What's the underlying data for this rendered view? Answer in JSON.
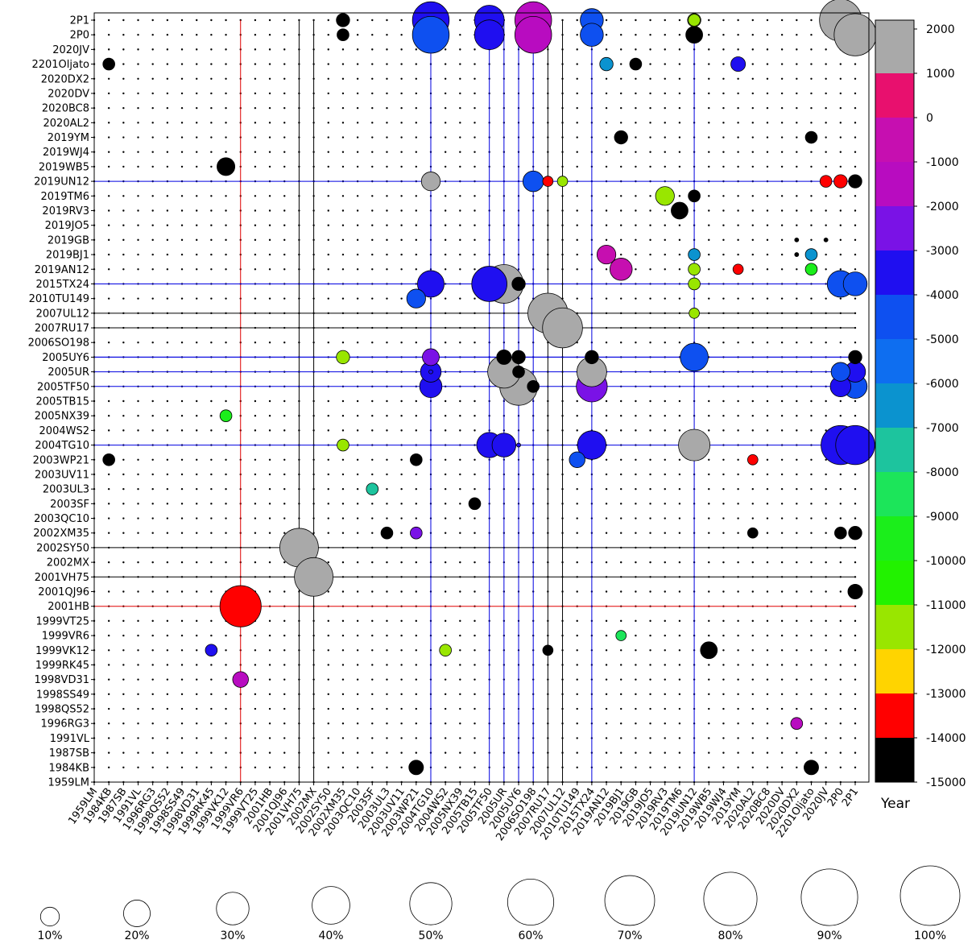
{
  "chart_data": {
    "type": "scatter",
    "description_kind": "bubble-matrix",
    "objects": [
      "1959LM",
      "1984KB",
      "1987SB",
      "1991VL",
      "1996RG3",
      "1998QS52",
      "1998SS49",
      "1998VD31",
      "1999RK45",
      "1999VK12",
      "1999VR6",
      "1999VT25",
      "2001HB",
      "2001QJ96",
      "2001VH75",
      "2002MX",
      "2002SY50",
      "2002XM35",
      "2003QC10",
      "2003SF",
      "2003UL3",
      "2003UV11",
      "2003WP21",
      "2004TG10",
      "2004WS2",
      "2005NX39",
      "2005TB15",
      "2005TF50",
      "2005UR",
      "2005UY6",
      "2006SO198",
      "2007RU17",
      "2007UL12",
      "2010TU149",
      "2015TX24",
      "2019AN12",
      "2019BJ1",
      "2019GB",
      "2019JO5",
      "2019RV3",
      "2019TM6",
      "2019UN12",
      "2019WB5",
      "2019WJ4",
      "2019YM",
      "2020AL2",
      "2020BC8",
      "2020DV",
      "2020DX2",
      "2201Oljato",
      "2020JV",
      "2P0",
      "2P1"
    ],
    "colorbar": {
      "label": "Year",
      "ticks": [
        2000,
        1000,
        0,
        -1000,
        -2000,
        -3000,
        -4000,
        -5000,
        -6000,
        -7000,
        -8000,
        -9000,
        -10000,
        -11000,
        -12000,
        -13000,
        -14000,
        -15000
      ],
      "bands": [
        {
          "range": [
            1000,
            2200
          ],
          "color": "#a9a9a9"
        },
        {
          "range": [
            0,
            1000
          ],
          "color": "#e8106e"
        },
        {
          "range": [
            -1000,
            0
          ],
          "color": "#c60fb0"
        },
        {
          "range": [
            -2000,
            -1000
          ],
          "color": "#b80cc0"
        },
        {
          "range": [
            -3000,
            -2000
          ],
          "color": "#7a12e6"
        },
        {
          "range": [
            -4000,
            -3000
          ],
          "color": "#1f0ff0"
        },
        {
          "range": [
            -5000,
            -4000
          ],
          "color": "#0e50f0"
        },
        {
          "range": [
            -6000,
            -5000
          ],
          "color": "#0e6ef0"
        },
        {
          "range": [
            -7000,
            -6000
          ],
          "color": "#0b93cf"
        },
        {
          "range": [
            -8000,
            -7000
          ],
          "color": "#1dc49e"
        },
        {
          "range": [
            -9000,
            -8000
          ],
          "color": "#1ce55a"
        },
        {
          "range": [
            -10000,
            -9000
          ],
          "color": "#1bee1b"
        },
        {
          "range": [
            -11000,
            -10000
          ],
          "color": "#22f200"
        },
        {
          "range": [
            -12000,
            -11000
          ],
          "color": "#99e600"
        },
        {
          "range": [
            -13000,
            -12000
          ],
          "color": "#ffd400"
        },
        {
          "range": [
            -14000,
            -13000
          ],
          "color": "#ff0000"
        },
        {
          "range": [
            -15000,
            -14000
          ],
          "color": "#000000"
        }
      ]
    },
    "size_legend": [
      "10%",
      "20%",
      "30%",
      "40%",
      "50%",
      "60%",
      "70%",
      "80%",
      "90%",
      "100%"
    ],
    "lines": [
      {
        "x": "1999VR6",
        "y": "2001HB",
        "color": "#e00000"
      },
      {
        "x": "2001VH75",
        "y": "2002SY50",
        "color": "#000000"
      },
      {
        "x": "2002MX",
        "y": "2001VH75",
        "color": "#000000"
      },
      {
        "x": "2004TG10",
        "y": "2019UN12",
        "color": "#0000e0"
      },
      {
        "x": "2005TF50",
        "y": "2015TX24",
        "color": "#0000e0"
      },
      {
        "x": "2005UR",
        "y": "2005UR",
        "color": "#0000e0"
      },
      {
        "x": "2005UY6",
        "y": "2005UY6",
        "color": "#0000e0"
      },
      {
        "x": "2006SO198",
        "y": "2004TG10",
        "color": "#0000e0"
      },
      {
        "x": "2007RU17",
        "y": "2007UL12",
        "color": "#000000"
      },
      {
        "x": "2007UL12",
        "y": "2007RU17",
        "color": "#000000"
      },
      {
        "x": "2015TX24",
        "y": "2005TF50",
        "color": "#0000e0"
      },
      {
        "x": "2019UN12",
        "y": "2005UY6",
        "color": "#0000e0"
      }
    ],
    "points": [
      {
        "x": "1999VR6",
        "y": "2001HB",
        "pct": 48,
        "year": -13500
      },
      {
        "x": "2001VH75",
        "y": "2002SY50",
        "pct": 42,
        "year": 1500
      },
      {
        "x": "2002MX",
        "y": "2001VH75",
        "pct": 42,
        "year": 1500
      },
      {
        "x": "2004TG10",
        "y": "2P1",
        "pct": 38,
        "year": -3500
      },
      {
        "x": "2004TG10",
        "y": "2P0",
        "pct": 38,
        "year": -4500
      },
      {
        "x": "2005TF50",
        "y": "2P1",
        "pct": 25,
        "year": -3500
      },
      {
        "x": "2005TF50",
        "y": "2P0",
        "pct": 25,
        "year": -3500
      },
      {
        "x": "2006SO198",
        "y": "2P1",
        "pct": 38,
        "year": -1500
      },
      {
        "x": "2006SO198",
        "y": "2P0",
        "pct": 38,
        "year": -1500
      },
      {
        "x": "2015TX24",
        "y": "2P1",
        "pct": 15,
        "year": -4500
      },
      {
        "x": "2015TX24",
        "y": "2P0",
        "pct": 15,
        "year": -4500
      },
      {
        "x": "2P0",
        "y": "2P1",
        "pct": 50,
        "year": 1500
      },
      {
        "x": "2P1",
        "y": "2P0",
        "pct": 50,
        "year": 1500
      },
      {
        "x": "2004TG10",
        "y": "2019UN12",
        "pct": 10,
        "year": 1500
      },
      {
        "x": "2006SO198",
        "y": "2019UN12",
        "pct": 12,
        "year": -4500
      },
      {
        "x": "2005TF50",
        "y": "2015TX24",
        "pct": 35,
        "year": -3500
      },
      {
        "x": "2005UR",
        "y": "2015TX24",
        "pct": 42,
        "year": 1500
      },
      {
        "x": "2004TG10",
        "y": "2015TX24",
        "pct": 20,
        "year": -3500
      },
      {
        "x": "2003WP21",
        "y": "2010TU149",
        "pct": 10,
        "year": -4500
      },
      {
        "x": "2007RU17",
        "y": "2007UL12",
        "pct": 45,
        "year": 1500
      },
      {
        "x": "2007UL12",
        "y": "2007RU17",
        "pct": 45,
        "year": 1500
      },
      {
        "x": "2019UN12",
        "y": "2005UY6",
        "pct": 22,
        "year": -4500
      },
      {
        "x": "2005UR",
        "y": "2005UR",
        "pct": 30,
        "year": 1500
      },
      {
        "x": "2005UY6",
        "y": "2005TF50",
        "pct": 40,
        "year": 1500
      },
      {
        "x": "2015TX24",
        "y": "2005UR",
        "pct": 25,
        "year": 1500
      },
      {
        "x": "2015TX24",
        "y": "2005TF50",
        "pct": 27,
        "year": -2500
      },
      {
        "x": "2004TG10",
        "y": "2005UY6",
        "pct": 8,
        "year": -2500
      },
      {
        "x": "2004TG10",
        "y": "2005UR",
        "pct": 12,
        "year": -3500
      },
      {
        "x": "2004TG10",
        "y": "2005TF50",
        "pct": 14,
        "year": -3500
      },
      {
        "x": "2019UN12",
        "y": "2004TG10",
        "pct": 28,
        "year": 1500
      },
      {
        "x": "2005TF50",
        "y": "2004TG10",
        "pct": 18,
        "year": -3500
      },
      {
        "x": "2005UR",
        "y": "2004TG10",
        "pct": 16,
        "year": -3500
      },
      {
        "x": "2015TX24",
        "y": "2004TG10",
        "pct": 23,
        "year": -3500
      },
      {
        "x": "2P0",
        "y": "2004TG10",
        "pct": 43,
        "year": -3500
      },
      {
        "x": "2P1",
        "y": "2004TG10",
        "pct": 43,
        "year": -3500
      },
      {
        "x": "2P0",
        "y": "2015TX24",
        "pct": 20,
        "year": -4500
      },
      {
        "x": "2P1",
        "y": "2015TX24",
        "pct": 16,
        "year": -4500
      },
      {
        "x": "2P0",
        "y": "2005UR",
        "pct": 10,
        "year": -4500
      },
      {
        "x": "2P1",
        "y": "2005UR",
        "pct": 12,
        "year": -3500
      },
      {
        "x": "2P0",
        "y": "2005TF50",
        "pct": 12,
        "year": -3500
      },
      {
        "x": "2P1",
        "y": "2005TF50",
        "pct": 16,
        "year": -4500
      },
      {
        "x": "2019BJ1",
        "y": "2019AN12",
        "pct": 14,
        "year": -500
      },
      {
        "x": "2019AN12",
        "y": "2019BJ1",
        "pct": 10,
        "year": -500
      },
      {
        "x": "2019RV3",
        "y": "2019TM6",
        "pct": 10,
        "year": -11500
      },
      {
        "x": "2019TM6",
        "y": "2019RV3",
        "pct": 8,
        "year": -14500
      },
      {
        "x": "2019WB5",
        "y": "1999VK12",
        "pct": 8,
        "year": -14500
      },
      {
        "x": "1999VK12",
        "y": "2019WB5",
        "pct": 9,
        "year": -14500
      },
      {
        "x": "2010TU149",
        "y": "2003WP21",
        "pct": 7,
        "year": -4500
      },
      {
        "x": "2019UN12",
        "y": "2P0",
        "pct": 8,
        "year": -14500
      },
      {
        "x": "2019UN12",
        "y": "2P1",
        "pct": 5,
        "year": -11500
      },
      {
        "x": "2019AN12",
        "y": "2201Oljato",
        "pct": 5,
        "year": -6500
      },
      {
        "x": "2019YM",
        "y": "2201Oljato",
        "pct": 6,
        "year": -3500
      },
      {
        "x": "2019UN12",
        "y": "2019AN12",
        "pct": 4,
        "year": -11500
      },
      {
        "x": "2019UN12",
        "y": "2019BJ1",
        "pct": 4,
        "year": -6500
      },
      {
        "x": "2201Oljato",
        "y": "2019AN12",
        "pct": 4,
        "year": -9500
      },
      {
        "x": "2201Oljato",
        "y": "2019BJ1",
        "pct": 4,
        "year": -6500
      },
      {
        "x": "2P0",
        "y": "2019UN12",
        "pct": 5,
        "year": -13500
      },
      {
        "x": "2P1",
        "y": "2019UN12",
        "pct": 5,
        "year": -14500
      },
      {
        "x": "2P1",
        "y": "2005UY6",
        "pct": 5,
        "year": -14500
      },
      {
        "x": "2P1",
        "y": "2002XM35",
        "pct": 5,
        "year": -14500
      },
      {
        "x": "2P0",
        "y": "2002XM35",
        "pct": 4,
        "year": -14500
      },
      {
        "x": "2P1",
        "y": "2001QJ96",
        "pct": 6,
        "year": -14500
      },
      {
        "x": "2201Oljato",
        "y": "1984KB",
        "pct": 6,
        "year": -14500
      },
      {
        "x": "2003WP21",
        "y": "1984KB",
        "pct": 6,
        "year": -14500
      },
      {
        "x": "1984KB",
        "y": "2003WP21",
        "pct": 4,
        "year": -14500
      },
      {
        "x": "1984KB",
        "y": "2201Oljato",
        "pct": 4,
        "year": -14500
      },
      {
        "x": "1999VK12",
        "y": "2005NX39",
        "pct": 4,
        "year": -9500
      },
      {
        "x": "1999VR6",
        "y": "1998VD31",
        "pct": 7,
        "year": -1500
      },
      {
        "x": "2005UY6",
        "y": "2005UY6",
        "pct": 5,
        "year": -14500
      },
      {
        "x": "2005UR",
        "y": "2005UY6",
        "pct": 6,
        "year": -14500
      },
      {
        "x": "2005UY6",
        "y": "2015TX24",
        "pct": 5,
        "year": -14500
      },
      {
        "x": "2005UY6",
        "y": "2005UR",
        "pct": 4,
        "year": -14500
      },
      {
        "x": "2015TX24",
        "y": "2005UY6",
        "pct": 5,
        "year": -14500
      },
      {
        "x": "2006SO198",
        "y": "2005TF50",
        "pct": 4,
        "year": -14500
      },
      {
        "x": "2002XM35",
        "y": "2P1",
        "pct": 5,
        "year": -14500
      },
      {
        "x": "2002XM35",
        "y": "2P0",
        "pct": 4,
        "year": -14500
      },
      {
        "x": "2019GB",
        "y": "2201Oljato",
        "pct": 4,
        "year": -14500
      },
      {
        "x": "2019YM",
        "y": "2019AN12",
        "pct": 3,
        "year": -13500
      },
      {
        "x": "2019BJ1",
        "y": "2019YM",
        "pct": 5,
        "year": -14500
      },
      {
        "x": "2020JV",
        "y": "2019UN12",
        "pct": 4,
        "year": -13500
      },
      {
        "x": "2019UN12",
        "y": "2019TM6",
        "pct": 4,
        "year": -14500
      },
      {
        "x": "2019UN12",
        "y": "2P1",
        "pct": 4,
        "year": -11500
      },
      {
        "x": "2002XM35",
        "y": "2005UY6",
        "pct": 5,
        "year": -11500
      },
      {
        "x": "2004TG10",
        "y": "2005UR",
        "pct": 0,
        "year": -3500
      },
      {
        "x": "2005UY6",
        "y": "2004TG10",
        "pct": 0,
        "year": -3500
      },
      {
        "x": "2003WP21",
        "y": "2002XM35",
        "pct": 4,
        "year": -2500
      },
      {
        "x": "1999RK45",
        "y": "1999VK12",
        "pct": 4,
        "year": -3500
      },
      {
        "x": "2003SF",
        "y": "2003UL3",
        "pct": 4,
        "year": -7500
      },
      {
        "x": "2003WP21",
        "y": "2003WP21",
        "pct": 4,
        "year": -14500
      },
      {
        "x": "2002XM35",
        "y": "2004TG10",
        "pct": 4,
        "year": -12000
      },
      {
        "x": "2005TB15",
        "y": "2003SF",
        "pct": 4,
        "year": -14500
      },
      {
        "x": "2004WS2",
        "y": "1999VK12",
        "pct": 4,
        "year": -11500
      },
      {
        "x": "2007UL12",
        "y": "2019UN12",
        "pct": 3,
        "year": -11500
      },
      {
        "x": "2007RU17",
        "y": "2019UN12",
        "pct": 3,
        "year": -13500
      },
      {
        "x": "2003UL3",
        "y": "2002XM35",
        "pct": 4,
        "year": -14500
      },
      {
        "x": "2007RU17",
        "y": "1999VK12",
        "pct": 3,
        "year": -14500
      },
      {
        "x": "2019UN12",
        "y": "2015TX24",
        "pct": 4,
        "year": -11500
      },
      {
        "x": "2019UN12",
        "y": "2007UL12",
        "pct": 3,
        "year": -11500
      },
      {
        "x": "2019BJ1",
        "y": "1999VR6",
        "pct": 3,
        "year": -8500
      },
      {
        "x": "2020AL2",
        "y": "2003WP21",
        "pct": 3,
        "year": -13500
      },
      {
        "x": "2020AL2",
        "y": "2002XM35",
        "pct": 3,
        "year": -14500
      },
      {
        "x": "2020DX2",
        "y": "1996RG3",
        "pct": 4,
        "year": -1500
      },
      {
        "x": "2020DX2",
        "y": "2019GB",
        "pct": 0,
        "year": -14500
      },
      {
        "x": "2201Oljato",
        "y": "2019YM",
        "pct": 4,
        "year": -14500
      },
      {
        "x": "2020JV",
        "y": "2019GB",
        "pct": 0,
        "year": -14500
      },
      {
        "x": "2020DX2",
        "y": "2019BJ1",
        "pct": 0,
        "year": -14500
      }
    ]
  }
}
